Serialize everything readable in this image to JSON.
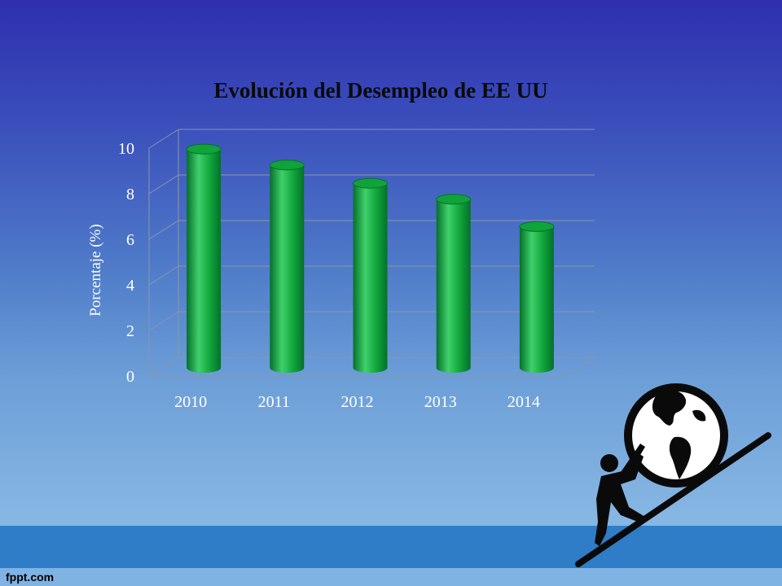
{
  "footer": {
    "text": "fppt.com"
  },
  "colors": {
    "bar": "#0fa33a",
    "bar_dark": "#05702a",
    "bar_light": "#3fd06a",
    "grid": "#8a97a6"
  },
  "illustration": {
    "icon": "person-pushing-globe-uphill-icon"
  },
  "chart_data": {
    "type": "bar",
    "title": "Evolución del Desempleo de EE UU",
    "xlabel": "",
    "ylabel": "Porcentaje (%)",
    "categories": [
      "2010",
      "2011",
      "2012",
      "2013",
      "2014"
    ],
    "values": [
      9.6,
      8.9,
      8.1,
      7.4,
      6.2
    ],
    "ylim": [
      0,
      10
    ],
    "yticks": [
      "0",
      "2",
      "4",
      "6",
      "8",
      "10"
    ],
    "grid": true,
    "style": "3d-cylinder"
  }
}
